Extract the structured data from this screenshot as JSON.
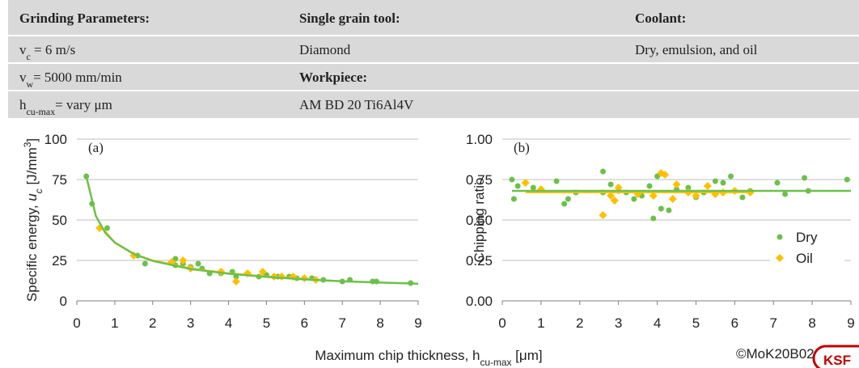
{
  "header": {
    "columns": [
      {
        "title": "Grinding Parameters:",
        "lines": [
          [
            {
              "text": "v"
            },
            {
              "text": "c",
              "style": "sub"
            },
            {
              "text": " = 6 m/s"
            }
          ],
          [
            {
              "text": "v"
            },
            {
              "text": "w",
              "style": "sub"
            },
            {
              "text": "= 5000  mm/min"
            }
          ],
          [
            {
              "text": "h"
            },
            {
              "text": "cu-max",
              "style": "sub"
            },
            {
              "text": "=  vary μm"
            }
          ]
        ]
      },
      {
        "title": "Single grain tool:",
        "lines": [
          [
            {
              "text": "Diamond"
            }
          ],
          [
            {
              "text": "Workpiece:",
              "style": "bold"
            }
          ],
          [
            {
              "text": "AM BD 20 Ti6Al4V"
            }
          ]
        ]
      },
      {
        "title": "Coolant:",
        "lines": [
          [
            {
              "text": "Dry, emulsion, and oil"
            }
          ]
        ]
      }
    ]
  },
  "x_axis_label": [
    {
      "text": "Maximum chip thickness, h"
    },
    {
      "text": "cu-max",
      "style": "sub"
    },
    {
      "text": " [μm]"
    }
  ],
  "footer": {
    "copyright": "©MoK20B020",
    "logo": "KSF"
  },
  "chart_data": [
    {
      "type": "scatter",
      "panel_label": "(a)",
      "y_label": [
        {
          "text": "Specific energy, "
        },
        {
          "text": "u",
          "style": "italic"
        },
        {
          "text": "c",
          "style": "sub-italic"
        },
        {
          "text": " [J/mm"
        },
        {
          "text": "3",
          "style": "sup"
        },
        {
          "text": "]"
        }
      ],
      "xlim": [
        0,
        9
      ],
      "xticks": [
        0,
        1,
        2,
        3,
        4,
        5,
        6,
        7,
        8,
        9
      ],
      "ylim": [
        0,
        100
      ],
      "yticks": [
        0,
        25,
        50,
        75,
        100
      ],
      "grid": true,
      "series": [
        {
          "name": "Dry",
          "color": "#6cc04a",
          "marker": "circle",
          "x": [
            0.25,
            0.4,
            0.8,
            1.6,
            1.8,
            2.6,
            2.6,
            2.8,
            3.0,
            3.2,
            3.3,
            3.5,
            3.8,
            4.1,
            4.2,
            4.5,
            4.8,
            5.0,
            5.3,
            5.6,
            5.8,
            6.0,
            6.2,
            6.5,
            7.0,
            7.2,
            7.8,
            7.9,
            8.8
          ],
          "values": [
            77,
            60,
            45,
            28,
            23,
            26,
            22,
            23,
            21,
            23,
            20,
            17,
            17,
            18,
            15,
            17,
            15,
            16,
            15,
            15,
            14,
            14,
            14,
            13,
            12,
            13,
            12,
            12,
            11
          ]
        },
        {
          "name": "Oil",
          "color": "#ffc000",
          "marker": "diamond",
          "x": [
            0.6,
            1.5,
            2.5,
            2.8,
            3.0,
            3.8,
            4.2,
            4.5,
            4.9,
            5.2,
            5.4,
            5.7,
            6.0,
            6.3
          ],
          "values": [
            45,
            28,
            24,
            25,
            20,
            18,
            12,
            17,
            18,
            15,
            15,
            15,
            14,
            13
          ]
        }
      ],
      "fits": [
        {
          "color": "#ffc000",
          "x": [
            0.6,
            1,
            1.5,
            2,
            3,
            4,
            5,
            6.4
          ],
          "values": [
            47,
            36,
            29,
            25,
            20,
            17,
            15,
            13
          ]
        },
        {
          "color": "#6cc04a",
          "x": [
            0.25,
            0.5,
            0.75,
            1,
            1.5,
            2,
            3,
            4,
            5,
            6,
            7,
            8,
            9
          ],
          "values": [
            77,
            52.6,
            42,
            36.1,
            29,
            24.7,
            19.7,
            16.8,
            14.8,
            13.3,
            12.1,
            11.3,
            10.6
          ]
        }
      ]
    },
    {
      "type": "scatter",
      "panel_label": "(b)",
      "y_label": [
        {
          "text": "Chipping ratio"
        }
      ],
      "xlim": [
        0,
        9
      ],
      "xticks": [
        0,
        1,
        2,
        3,
        4,
        5,
        6,
        7,
        8,
        9
      ],
      "ylim": [
        0,
        1
      ],
      "yticks": [
        {
          "value": 0,
          "label": "0.00"
        },
        {
          "value": 0.25,
          "label": "0.25"
        },
        {
          "value": 0.5,
          "label": "0.50"
        },
        {
          "value": 0.75,
          "label": "0.75"
        },
        {
          "value": 1,
          "label": "1.00"
        }
      ],
      "grid": true,
      "legend": "lower right",
      "series": [
        {
          "name": "Dry",
          "color": "#6cc04a",
          "marker": "circle",
          "x": [
            0.25,
            0.3,
            0.4,
            0.8,
            1.4,
            1.6,
            1.7,
            1.9,
            2.6,
            2.6,
            2.8,
            3.0,
            3.2,
            3.4,
            3.6,
            3.8,
            3.9,
            4.0,
            4.1,
            4.3,
            4.5,
            4.8,
            5.0,
            5.2,
            5.5,
            5.7,
            5.9,
            6.2,
            6.4,
            7.1,
            7.3,
            7.8,
            7.9,
            8.9
          ],
          "values": [
            0.75,
            0.63,
            0.71,
            0.7,
            0.74,
            0.6,
            0.63,
            0.67,
            0.8,
            0.67,
            0.72,
            0.68,
            0.67,
            0.63,
            0.65,
            0.71,
            0.51,
            0.77,
            0.57,
            0.56,
            0.69,
            0.7,
            0.64,
            0.67,
            0.74,
            0.73,
            0.77,
            0.64,
            0.68,
            0.73,
            0.66,
            0.76,
            0.68,
            0.75
          ]
        },
        {
          "name": "Oil",
          "color": "#ffc000",
          "marker": "diamond",
          "x": [
            0.6,
            1.0,
            2.6,
            2.8,
            2.9,
            3.0,
            3.5,
            3.9,
            4.1,
            4.2,
            4.4,
            4.5,
            4.8,
            5.0,
            5.3,
            5.5,
            5.7,
            6.0,
            6.4
          ],
          "values": [
            0.73,
            0.69,
            0.53,
            0.65,
            0.62,
            0.7,
            0.66,
            0.65,
            0.79,
            0.78,
            0.63,
            0.72,
            0.67,
            0.65,
            0.71,
            0.66,
            0.67,
            0.68,
            0.67
          ]
        }
      ],
      "fits": [
        {
          "color": "#ffc000",
          "x": [
            0.6,
            6.4
          ],
          "values": [
            0.672,
            0.672
          ]
        },
        {
          "color": "#6cc04a",
          "x": [
            0.25,
            9
          ],
          "values": [
            0.68,
            0.68
          ]
        }
      ]
    }
  ]
}
